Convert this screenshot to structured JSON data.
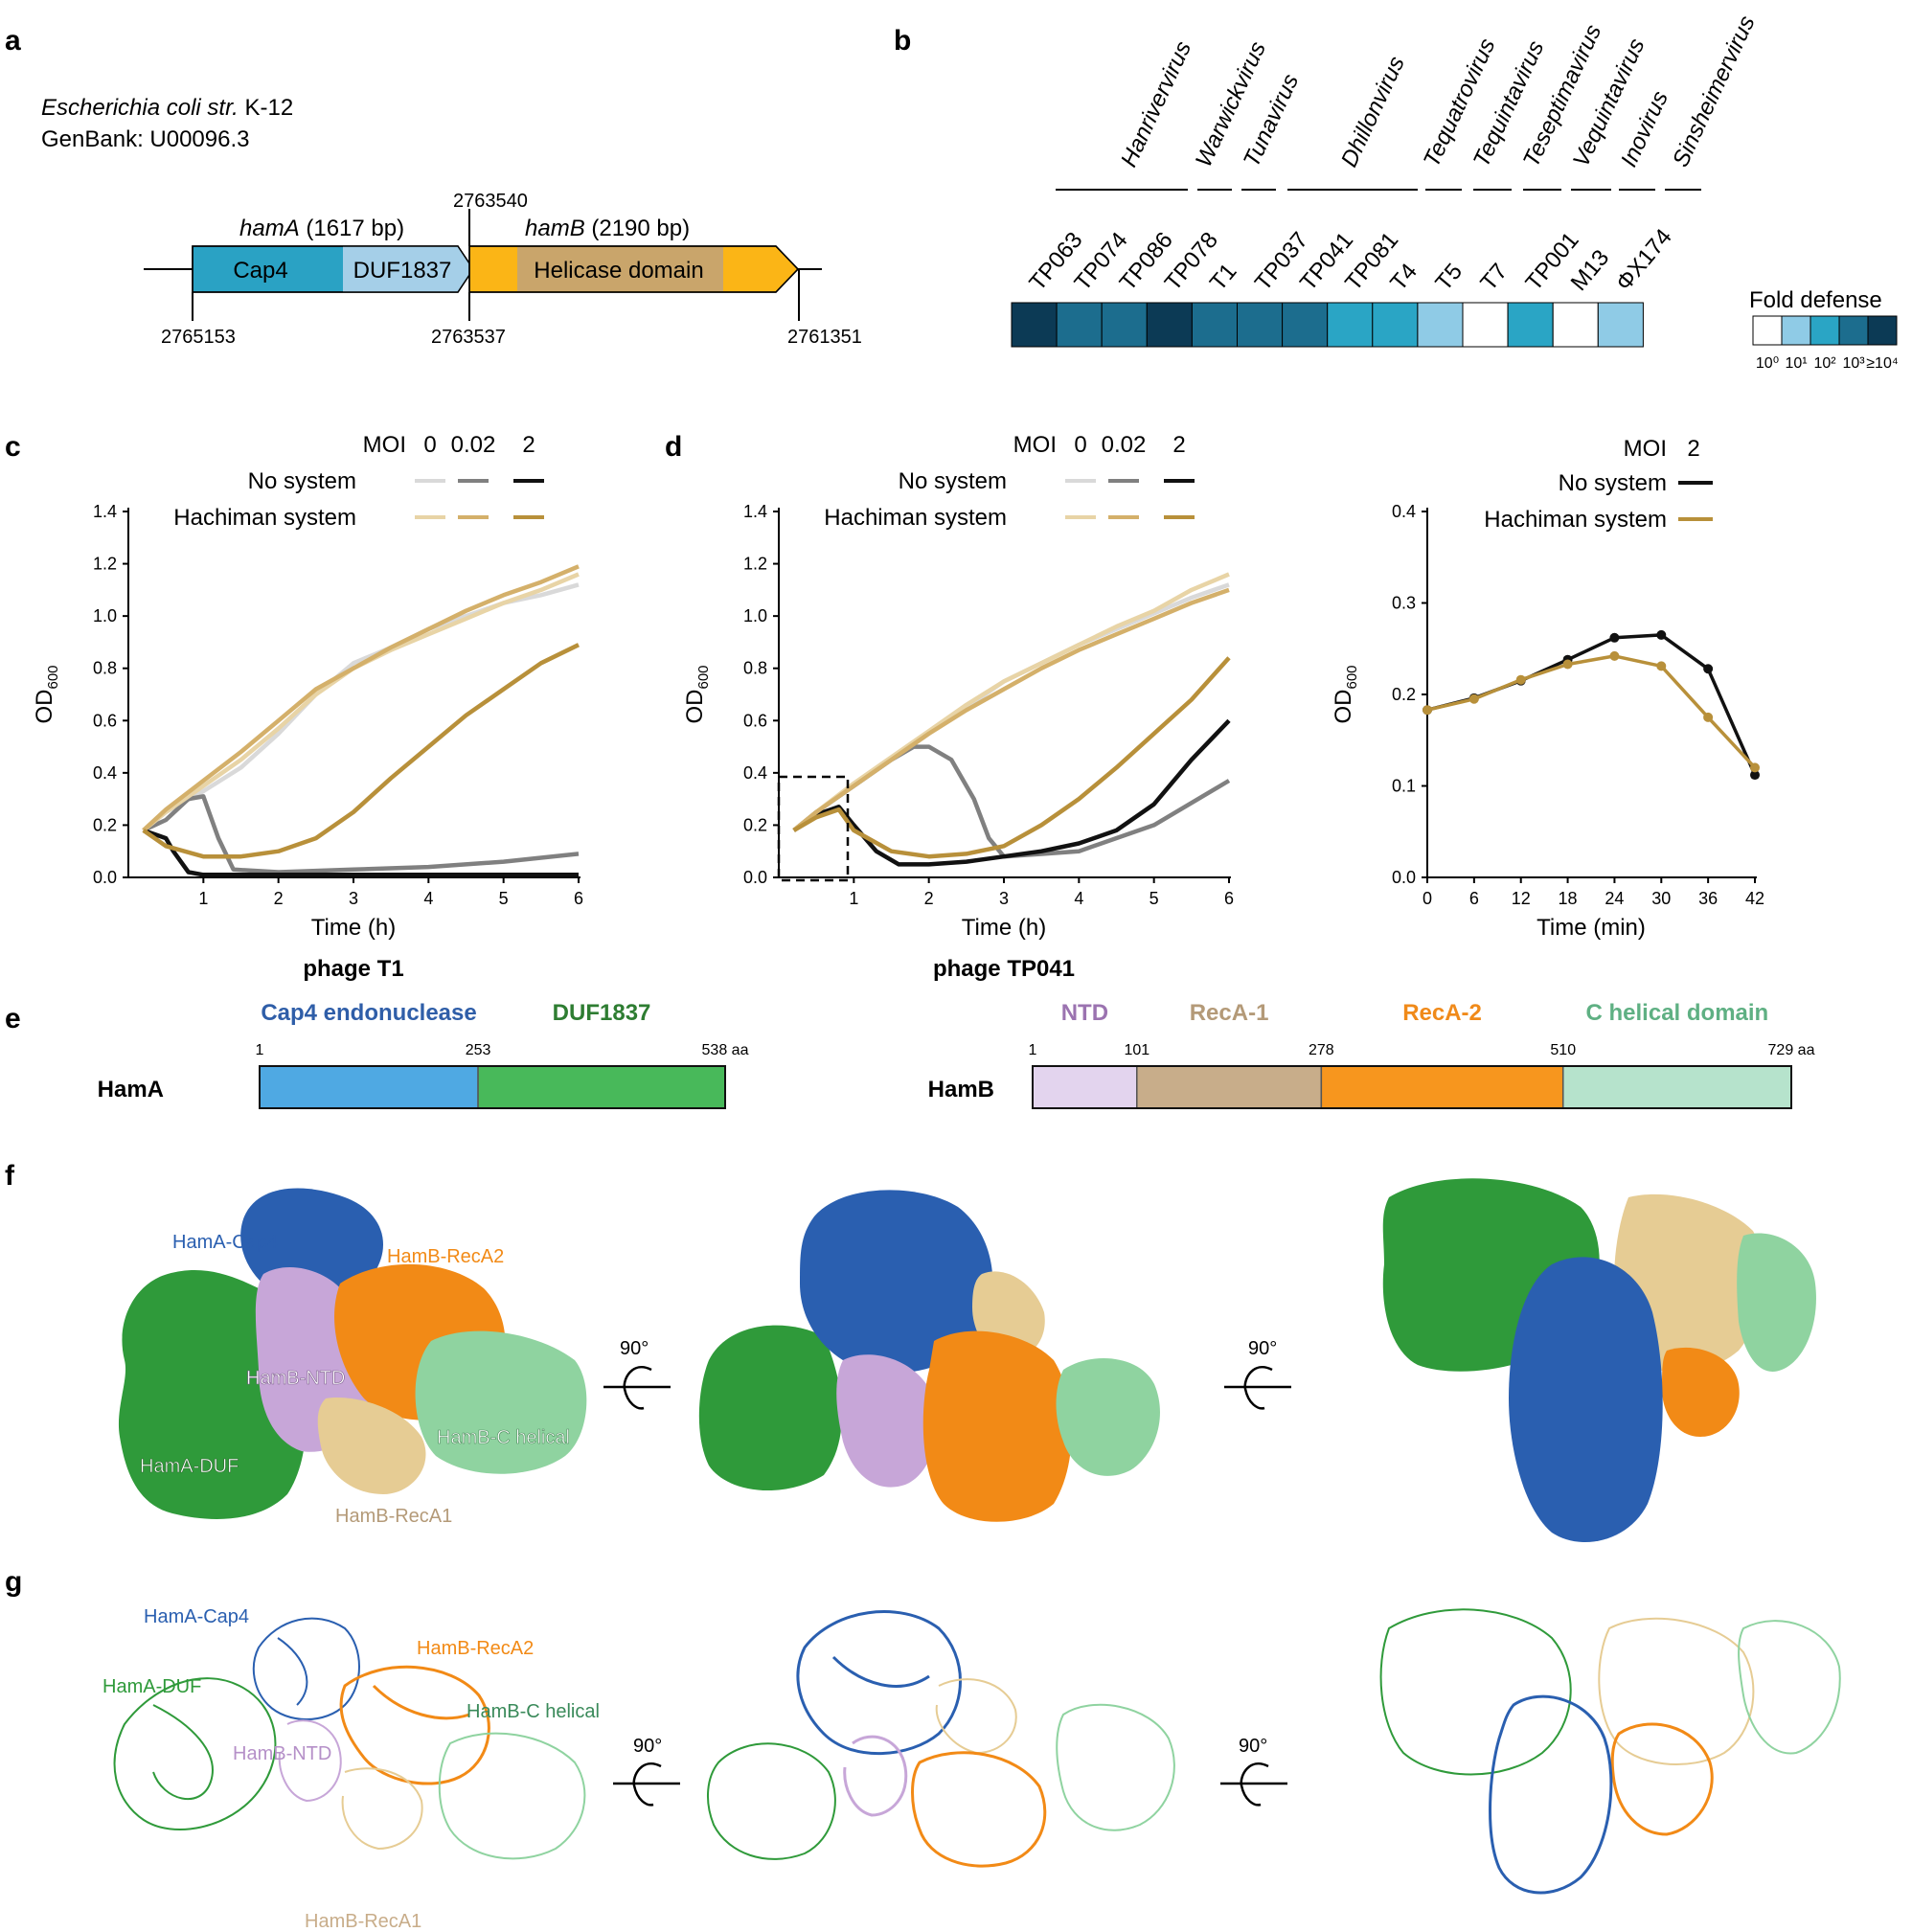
{
  "panels": {
    "a": "a",
    "b": "b",
    "c": "c",
    "d": "d",
    "e": "e",
    "f": "f",
    "g": "g"
  },
  "panel_a": {
    "organism_italic": "Escherichia coli str.",
    "organism_strain": " K-12",
    "genbank": "GenBank: U00096.3",
    "hamA_name": "hamA",
    "hamA_len": " (1617 bp)",
    "hamB_name": "hamB",
    "hamB_len": " (2190 bp)",
    "seg_cap4": "Cap4",
    "seg_duf": "DUF1837",
    "seg_helicase": "Helicase domain",
    "coord_top": "2763540",
    "coord_start": "2765153",
    "coord_mid": "2763537",
    "coord_end": "2761351",
    "colors": {
      "cap4": "#2aa2c4",
      "duf": "#a5cfe8",
      "hamB": "#fbb516",
      "helicase": "#c9a56b"
    }
  },
  "panel_b": {
    "genera": [
      "Hanrivervirus",
      "Warwickvirus",
      "Tunavirus",
      "Dhillonvirus",
      "Tequatrovirus",
      "Tequintavirus",
      "Teseptimavirus",
      "Vequintavirus",
      "Inovirus",
      "Sinsheimervirus"
    ],
    "phages": [
      "TP063",
      "TP074",
      "TP086",
      "TP078",
      "T1",
      "TP037",
      "TP041",
      "TP081",
      "T4",
      "T5",
      "T7",
      "TP001",
      "M13",
      "ΦX174"
    ],
    "levels": [
      4,
      3,
      3,
      4,
      3,
      3,
      3,
      2,
      2,
      1,
      0,
      2,
      0,
      1
    ],
    "palette": [
      "#ffffff",
      "#8fcbe6",
      "#2aa5c5",
      "#1c6d8e",
      "#0c3a55"
    ],
    "legend_title": "Fold defense",
    "legend_labels": [
      "10⁰",
      "10¹",
      "10²",
      "10³",
      "≥10⁴"
    ]
  },
  "chart_data": [
    {
      "type": "line",
      "panel": "c",
      "xlabel": "Time (h)",
      "ylabel": "OD600",
      "ylabel_main": "OD",
      "ylabel_sub": "600",
      "caption": "phage T1",
      "xlim": [
        0,
        6
      ],
      "ylim": [
        0,
        1.4
      ],
      "xticks": [
        "1",
        "2",
        "3",
        "4",
        "5",
        "6"
      ],
      "yticks": [
        "0.0",
        "0.2",
        "0.4",
        "0.6",
        "0.8",
        "1.0",
        "1.2",
        "1.4"
      ],
      "legend": {
        "moi_label": "MOI",
        "mois": [
          "0",
          "0.02",
          "2"
        ],
        "rows": [
          "No system",
          "Hachiman system"
        ]
      },
      "series": [
        {
          "name": "No system, MOI 0",
          "color": "#d9d9d9",
          "x": [
            0.2,
            0.5,
            1,
            1.5,
            2,
            2.5,
            3,
            3.5,
            4,
            4.5,
            5,
            5.5,
            6
          ],
          "y": [
            0.18,
            0.25,
            0.33,
            0.42,
            0.55,
            0.7,
            0.82,
            0.88,
            0.95,
            1.0,
            1.05,
            1.08,
            1.12
          ]
        },
        {
          "name": "No system, MOI 0.02",
          "color": "#808080",
          "x": [
            0.2,
            0.5,
            0.8,
            1,
            1.2,
            1.4,
            2,
            3,
            4,
            5,
            6
          ],
          "y": [
            0.18,
            0.22,
            0.3,
            0.31,
            0.15,
            0.03,
            0.02,
            0.03,
            0.04,
            0.06,
            0.09
          ]
        },
        {
          "name": "No system, MOI 2",
          "color": "#111111",
          "x": [
            0.2,
            0.5,
            0.6,
            0.8,
            1,
            1.5,
            2,
            3,
            4,
            5,
            6
          ],
          "y": [
            0.18,
            0.15,
            0.1,
            0.02,
            0.01,
            0.01,
            0.01,
            0.01,
            0.01,
            0.01,
            0.01
          ]
        },
        {
          "name": "Hachiman system, MOI 0",
          "color": "#e8d4a6",
          "x": [
            0.2,
            0.5,
            1,
            1.5,
            2,
            2.5,
            3,
            3.5,
            4,
            4.5,
            5,
            5.5,
            6
          ],
          "y": [
            0.18,
            0.25,
            0.35,
            0.45,
            0.57,
            0.7,
            0.8,
            0.87,
            0.93,
            0.99,
            1.05,
            1.1,
            1.16
          ]
        },
        {
          "name": "Hachiman system, MOI 0.02",
          "color": "#d4b06a",
          "x": [
            0.2,
            0.5,
            1,
            1.5,
            2,
            2.5,
            3,
            3.5,
            4,
            4.5,
            5,
            5.5,
            6
          ],
          "y": [
            0.18,
            0.26,
            0.37,
            0.48,
            0.6,
            0.72,
            0.8,
            0.88,
            0.95,
            1.02,
            1.08,
            1.13,
            1.19
          ]
        },
        {
          "name": "Hachiman system, MOI 2",
          "color": "#b8903a",
          "x": [
            0.2,
            0.5,
            1,
            1.5,
            2,
            2.5,
            3,
            3.5,
            4,
            4.5,
            5,
            5.5,
            6
          ],
          "y": [
            0.18,
            0.12,
            0.08,
            0.08,
            0.1,
            0.15,
            0.25,
            0.38,
            0.5,
            0.62,
            0.72,
            0.82,
            0.89
          ]
        }
      ]
    },
    {
      "type": "line",
      "panel": "d",
      "xlabel": "Time (h)",
      "ylabel": "OD600",
      "ylabel_main": "OD",
      "ylabel_sub": "600",
      "caption": "phage TP041",
      "xlim": [
        0,
        6
      ],
      "ylim": [
        0,
        1.4
      ],
      "xticks": [
        "1",
        "2",
        "3",
        "4",
        "5",
        "6"
      ],
      "yticks": [
        "0.0",
        "0.2",
        "0.4",
        "0.6",
        "0.8",
        "1.0",
        "1.2",
        "1.4"
      ],
      "legend": {
        "moi_label": "MOI",
        "mois": [
          "0",
          "0.02",
          "2"
        ],
        "rows": [
          "No system",
          "Hachiman system"
        ]
      },
      "series": [
        {
          "name": "No system, MOI 0",
          "color": "#d9d9d9",
          "x": [
            0.2,
            0.5,
            1,
            1.5,
            2,
            2.5,
            3,
            3.5,
            4,
            4.5,
            5,
            5.5,
            6
          ],
          "y": [
            0.18,
            0.25,
            0.35,
            0.45,
            0.55,
            0.65,
            0.75,
            0.82,
            0.89,
            0.95,
            1.01,
            1.07,
            1.12
          ]
        },
        {
          "name": "No system, MOI 0.02",
          "color": "#808080",
          "x": [
            0.2,
            0.5,
            1,
            1.5,
            1.8,
            2,
            2.3,
            2.6,
            2.8,
            3,
            4,
            5,
            6
          ],
          "y": [
            0.18,
            0.25,
            0.35,
            0.45,
            0.5,
            0.5,
            0.45,
            0.3,
            0.15,
            0.08,
            0.1,
            0.2,
            0.37
          ]
        },
        {
          "name": "No system, MOI 2",
          "color": "#111111",
          "x": [
            0.2,
            0.5,
            0.8,
            1,
            1.3,
            1.6,
            2,
            2.5,
            3,
            3.5,
            4,
            4.5,
            5,
            5.5,
            6
          ],
          "y": [
            0.18,
            0.24,
            0.27,
            0.2,
            0.1,
            0.05,
            0.05,
            0.06,
            0.08,
            0.1,
            0.13,
            0.18,
            0.28,
            0.45,
            0.6
          ]
        },
        {
          "name": "Hachiman system, MOI 0",
          "color": "#e8d4a6",
          "x": [
            0.2,
            0.5,
            1,
            1.5,
            2,
            2.5,
            3,
            3.5,
            4,
            4.5,
            5,
            5.5,
            6
          ],
          "y": [
            0.18,
            0.25,
            0.36,
            0.46,
            0.56,
            0.66,
            0.75,
            0.82,
            0.89,
            0.96,
            1.02,
            1.1,
            1.16
          ]
        },
        {
          "name": "Hachiman system, MOI 0.02",
          "color": "#d4b06a",
          "x": [
            0.2,
            0.5,
            1,
            1.5,
            2,
            2.5,
            3,
            3.5,
            4,
            4.5,
            5,
            5.5,
            6
          ],
          "y": [
            0.18,
            0.25,
            0.35,
            0.45,
            0.55,
            0.64,
            0.72,
            0.8,
            0.87,
            0.93,
            0.99,
            1.05,
            1.1
          ]
        },
        {
          "name": "Hachiman system, MOI 2",
          "color": "#b8903a",
          "x": [
            0.2,
            0.5,
            0.8,
            1,
            1.5,
            2,
            2.5,
            3,
            3.5,
            4,
            4.5,
            5,
            5.5,
            6
          ],
          "y": [
            0.18,
            0.23,
            0.26,
            0.18,
            0.1,
            0.08,
            0.09,
            0.12,
            0.2,
            0.3,
            0.42,
            0.55,
            0.68,
            0.84
          ]
        }
      ]
    },
    {
      "type": "line",
      "panel": "d-inset",
      "xlabel": "Time (min)",
      "ylabel": "OD600",
      "ylabel_main": "OD",
      "ylabel_sub": "600",
      "xlim": [
        0,
        42
      ],
      "ylim": [
        0,
        0.4
      ],
      "xticks": [
        "0",
        "6",
        "12",
        "18",
        "24",
        "30",
        "36",
        "42"
      ],
      "yticks": [
        "0.0",
        "0.1",
        "0.2",
        "0.3",
        "0.4"
      ],
      "legend": {
        "moi_label": "MOI",
        "mois": [
          "2"
        ],
        "rows": [
          "No system",
          "Hachiman system"
        ]
      },
      "series": [
        {
          "name": "No system",
          "color": "#111111",
          "x": [
            0,
            6,
            12,
            18,
            24,
            30,
            36,
            42
          ],
          "y": [
            0.183,
            0.196,
            0.215,
            0.238,
            0.262,
            0.265,
            0.228,
            0.112
          ]
        },
        {
          "name": "Hachiman system",
          "color": "#b8903a",
          "x": [
            0,
            6,
            12,
            18,
            24,
            30,
            36,
            42
          ],
          "y": [
            0.183,
            0.195,
            0.216,
            0.233,
            0.242,
            0.231,
            0.175,
            0.12
          ]
        }
      ]
    }
  ],
  "panel_e": {
    "hamA_label": "HamA",
    "hamA_domains": [
      {
        "name": "Cap4 endonuclease",
        "start": 1,
        "end": 253,
        "color": "#4fa9e3",
        "text_color": "#2f5ea8"
      },
      {
        "name": "DUF1837",
        "start": 253,
        "end": 538,
        "color": "#48b95a",
        "text_color": "#2e7d32"
      }
    ],
    "hamA_ticks": [
      "1",
      "253",
      "538 aa"
    ],
    "hamB_label": "HamB",
    "hamB_domains": [
      {
        "name": "NTD",
        "start": 1,
        "end": 101,
        "color": "#e3d4ee",
        "text_color": "#9b73b0"
      },
      {
        "name": "RecA-1",
        "start": 101,
        "end": 278,
        "color": "#c8ad8a",
        "text_color": "#b49a78"
      },
      {
        "name": "RecA-2",
        "start": 278,
        "end": 510,
        "color": "#f7961e",
        "text_color": "#f08a1a"
      },
      {
        "name": "C helical domain",
        "start": 510,
        "end": 729,
        "color": "#b6e3cc",
        "text_color": "#5fb083"
      }
    ],
    "hamB_ticks": [
      "1",
      "101",
      "278",
      "510",
      "729 aa"
    ]
  },
  "panel_f": {
    "labels": {
      "cap4": "HamA-Cap4",
      "recA2": "HamB-RecA2",
      "ntd": "HamB-NTD",
      "chelical": "HamB-C helical",
      "duf": "HamA-DUF",
      "recA1": "HamB-RecA1"
    },
    "rotation": "90°"
  },
  "panel_g": {
    "labels": {
      "cap4": "HamA-Cap4",
      "recA2": "HamB-RecA2",
      "duf": "HamA-DUF",
      "chelical": "HamB-C helical",
      "ntd": "HamB-NTD",
      "recA1": "HamB-RecA1"
    },
    "rotation": "90°"
  },
  "colors": {
    "cap4": "#2a5fb0",
    "duf": "#2f9a3a",
    "ntd": "#c7a6d8",
    "recA1": "#e6cc94",
    "recA2": "#f28a16",
    "chelical": "#8fd3a0"
  }
}
